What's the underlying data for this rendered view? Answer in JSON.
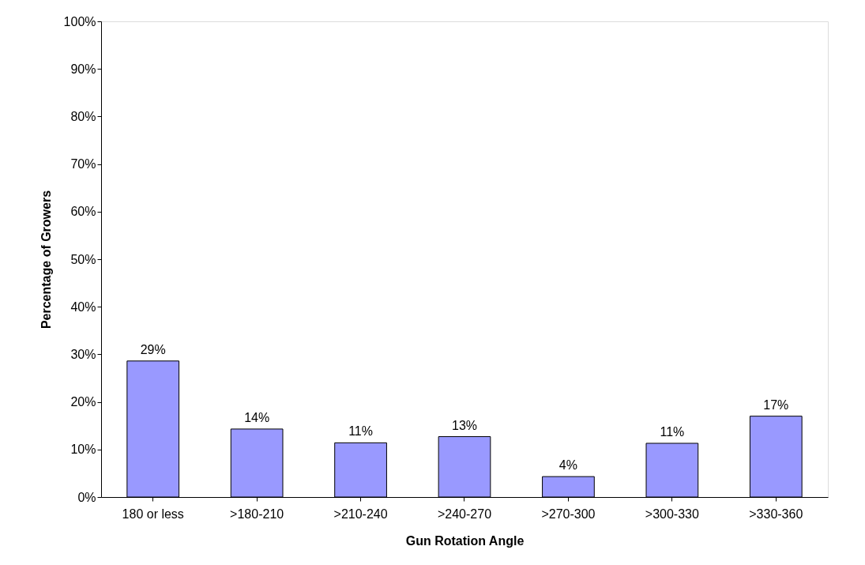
{
  "chart_data": {
    "type": "bar",
    "xlabel": "Gun Rotation Angle",
    "ylabel": "Percentage of Growers",
    "categories": [
      "180 or less",
      ">180-210",
      ">210-240",
      ">240-270",
      ">270-300",
      ">300-330",
      ">330-360"
    ],
    "values": [
      28.6,
      14.3,
      11.4,
      12.7,
      4.3,
      11.3,
      17.0
    ],
    "value_labels": [
      "29%",
      "14%",
      "11%",
      "13%",
      "4%",
      "11%",
      "17%"
    ],
    "color": "#9999ff",
    "ylim": [
      0,
      100
    ],
    "yticks": [
      {
        "value": 0,
        "label": "0%"
      },
      {
        "value": 10,
        "label": "10%"
      },
      {
        "value": 20,
        "label": "20%"
      },
      {
        "value": 30,
        "label": "30%"
      },
      {
        "value": 40,
        "label": "40%"
      },
      {
        "value": 50,
        "label": "50%"
      },
      {
        "value": 60,
        "label": "60%"
      },
      {
        "value": 70,
        "label": "70%"
      },
      {
        "value": 80,
        "label": "80%"
      },
      {
        "value": 90,
        "label": "90%"
      },
      {
        "value": 100,
        "label": "100%"
      }
    ],
    "grid": false
  }
}
